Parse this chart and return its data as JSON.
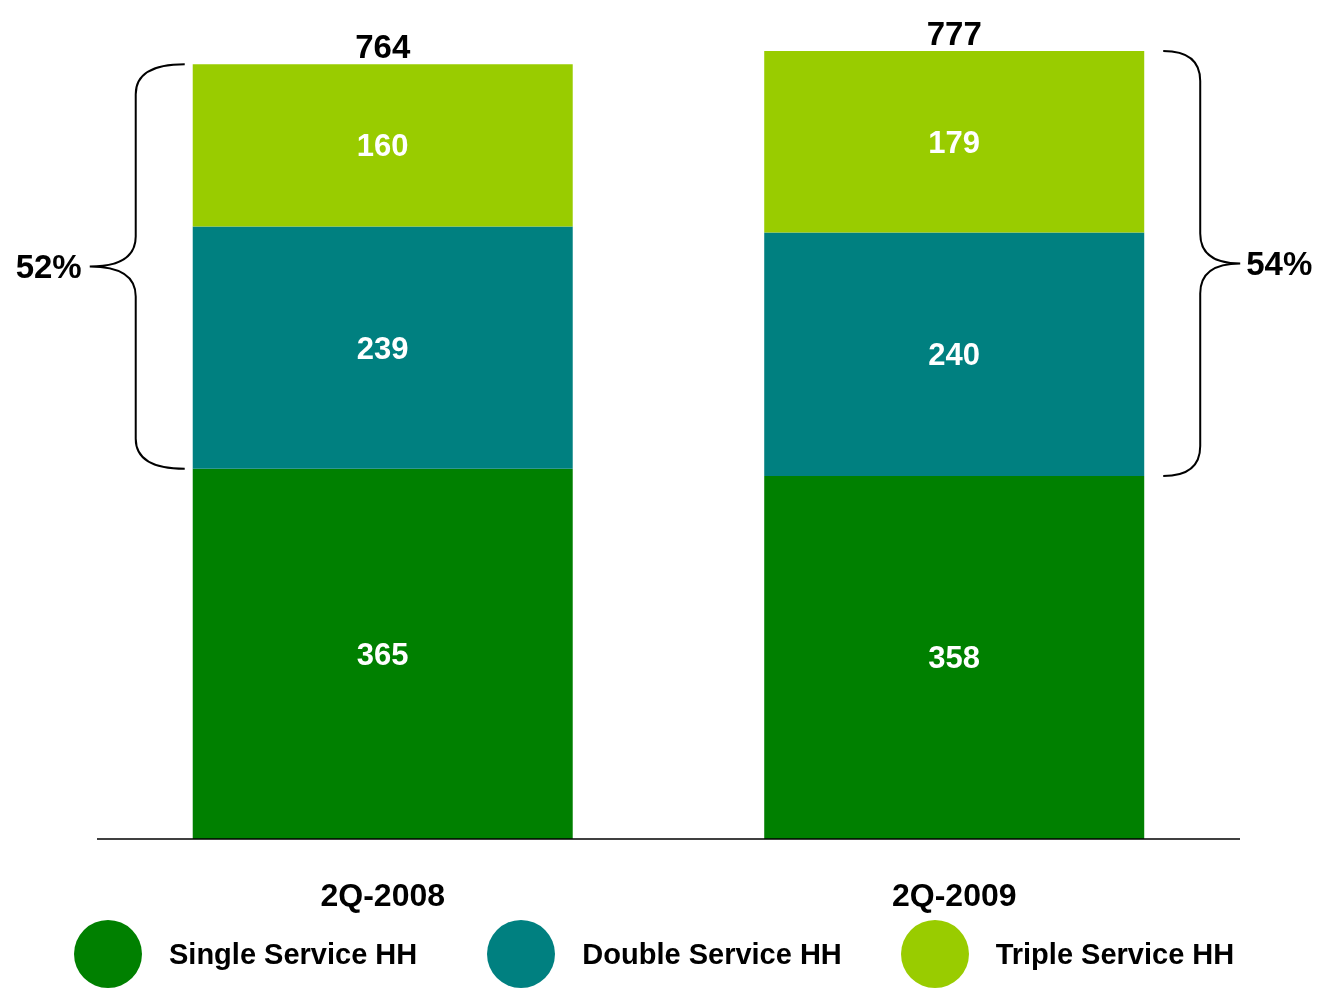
{
  "chart_data": {
    "type": "bar",
    "stacked": true,
    "categories": [
      "2Q-2008",
      "2Q-2009"
    ],
    "series": [
      {
        "name": "Single Service HH",
        "color": "#008000",
        "values": [
          365,
          358
        ]
      },
      {
        "name": "Double Service HH",
        "color": "#008080",
        "values": [
          239,
          240
        ]
      },
      {
        "name": "Triple Service HH",
        "color": "#99cc00",
        "values": [
          160,
          179
        ]
      }
    ],
    "data_labels": true,
    "totals": [
      "764",
      "777"
    ],
    "annotations": [
      "52%",
      "54%"
    ],
    "legend": "bottom",
    "grid": false
  }
}
